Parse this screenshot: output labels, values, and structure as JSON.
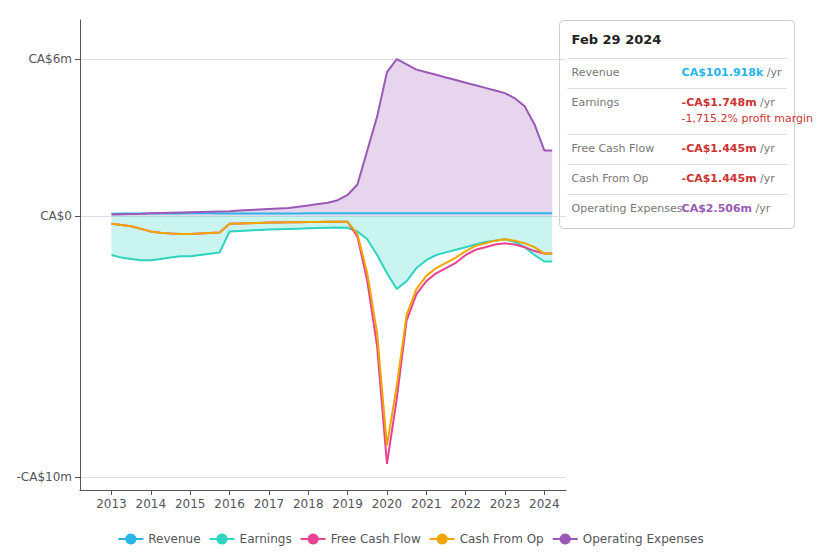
{
  "chart_data": {
    "type": "line",
    "x": [
      2013.0,
      2013.25,
      2013.5,
      2013.75,
      2014.0,
      2014.25,
      2014.5,
      2014.75,
      2015.0,
      2015.25,
      2015.5,
      2015.75,
      2016.0,
      2016.25,
      2016.5,
      2016.75,
      2017.0,
      2017.25,
      2017.5,
      2017.75,
      2018.0,
      2018.25,
      2018.5,
      2018.75,
      2019.0,
      2019.25,
      2019.5,
      2019.75,
      2020.0,
      2020.25,
      2020.5,
      2020.75,
      2021.0,
      2021.25,
      2021.5,
      2021.75,
      2022.0,
      2022.25,
      2022.5,
      2022.75,
      2023.0,
      2023.25,
      2023.5,
      2023.75,
      2024.0,
      2024.2
    ],
    "series": [
      {
        "name": "Revenue",
        "color": "#29b5e8",
        "type": "line",
        "values": [
          80000,
          85000,
          85000,
          90000,
          90000,
          92000,
          93000,
          94000,
          95000,
          95000,
          95000,
          94000,
          93000,
          93000,
          92000,
          91000,
          91000,
          92000,
          93000,
          94000,
          95000,
          96000,
          97000,
          97000,
          98000,
          98000,
          98000,
          97000,
          96000,
          95000,
          95000,
          95000,
          95000,
          96000,
          97000,
          98000,
          99000,
          100000,
          100000,
          100000,
          101000,
          101500,
          101800,
          101900,
          101918,
          101918
        ]
      },
      {
        "name": "Earnings",
        "color": "#2dd4bf",
        "type": "area",
        "values": [
          -1500000,
          -1600000,
          -1650000,
          -1700000,
          -1700000,
          -1650000,
          -1600000,
          -1550000,
          -1550000,
          -1500000,
          -1450000,
          -1400000,
          -600000,
          -580000,
          -560000,
          -540000,
          -520000,
          -510000,
          -500000,
          -490000,
          -480000,
          -470000,
          -460000,
          -450000,
          -460000,
          -600000,
          -900000,
          -1500000,
          -2200000,
          -2800000,
          -2500000,
          -2000000,
          -1700000,
          -1500000,
          -1400000,
          -1300000,
          -1200000,
          -1100000,
          -1000000,
          -950000,
          -900000,
          -1000000,
          -1200000,
          -1500000,
          -1748000,
          -1748000
        ]
      },
      {
        "name": "Free Cash Flow",
        "color": "#e84393",
        "type": "line",
        "values": [
          -300000,
          -350000,
          -400000,
          -500000,
          -600000,
          -650000,
          -680000,
          -700000,
          -700000,
          -680000,
          -660000,
          -640000,
          -300000,
          -290000,
          -280000,
          -270000,
          -260000,
          -255000,
          -250000,
          -245000,
          -240000,
          -235000,
          -230000,
          -225000,
          -230000,
          -800000,
          -2500000,
          -5000000,
          -9500000,
          -7000000,
          -4000000,
          -3000000,
          -2500000,
          -2200000,
          -2000000,
          -1800000,
          -1500000,
          -1300000,
          -1200000,
          -1100000,
          -1050000,
          -1100000,
          -1200000,
          -1350000,
          -1445000,
          -1445000
        ]
      },
      {
        "name": "Cash From Op",
        "color": "#f0a500",
        "type": "line",
        "values": [
          -300000,
          -350000,
          -400000,
          -500000,
          -600000,
          -650000,
          -680000,
          -700000,
          -700000,
          -680000,
          -660000,
          -640000,
          -300000,
          -290000,
          -280000,
          -270000,
          -260000,
          -255000,
          -250000,
          -245000,
          -240000,
          -235000,
          -230000,
          -225000,
          -230000,
          -700000,
          -2200000,
          -4500000,
          -8800000,
          -6500000,
          -3800000,
          -2800000,
          -2300000,
          -2000000,
          -1800000,
          -1600000,
          -1350000,
          -1150000,
          -1050000,
          -950000,
          -900000,
          -950000,
          -1050000,
          -1200000,
          -1445000,
          -1445000
        ]
      },
      {
        "name": "Operating Expenses",
        "color": "#9b59b6",
        "type": "area",
        "values": [
          50000,
          60000,
          70000,
          80000,
          100000,
          110000,
          120000,
          130000,
          140000,
          150000,
          160000,
          170000,
          180000,
          200000,
          220000,
          240000,
          260000,
          280000,
          300000,
          350000,
          400000,
          450000,
          500000,
          600000,
          800000,
          1200000,
          2500000,
          3800000,
          5500000,
          6000000,
          5800000,
          5600000,
          5500000,
          5400000,
          5300000,
          5200000,
          5100000,
          5000000,
          4900000,
          4800000,
          4700000,
          4500000,
          4200000,
          3500000,
          2506000,
          2506000
        ]
      }
    ],
    "xlim": [
      2012.2,
      2024.55
    ],
    "xticks": [
      2013,
      2014,
      2015,
      2016,
      2017,
      2018,
      2019,
      2020,
      2021,
      2022,
      2023,
      2024
    ],
    "ylim": [
      -10500000,
      7500000
    ],
    "yticks": [
      {
        "value": -10000000,
        "label": "-CA$10m"
      },
      {
        "value": 0,
        "label": "CA$0"
      },
      {
        "value": 6000000,
        "label": "CA$6m"
      }
    ],
    "grid": true,
    "legend": "bottom",
    "annotations": {
      "title": "Feb 29 2024",
      "rows": [
        {
          "label": "Revenue",
          "value": "CA$101.918k",
          "color": "#29b5e8",
          "suffix": " /yr"
        },
        {
          "label": "Earnings",
          "value": "-CA$1.748m",
          "color": "#cc3333",
          "suffix": " /yr",
          "extra": {
            "text": "-1,715.2% profit margin",
            "color": "#cc3333"
          }
        },
        {
          "label": "Free Cash Flow",
          "value": "-CA$1.445m",
          "color": "#cc3333",
          "suffix": " /yr"
        },
        {
          "label": "Cash From Op",
          "value": "-CA$1.445m",
          "color": "#cc3333",
          "suffix": " /yr"
        },
        {
          "label": "Operating Expenses",
          "value": "CA$2.506m",
          "color": "#9b59b6",
          "suffix": " /yr"
        }
      ]
    }
  }
}
